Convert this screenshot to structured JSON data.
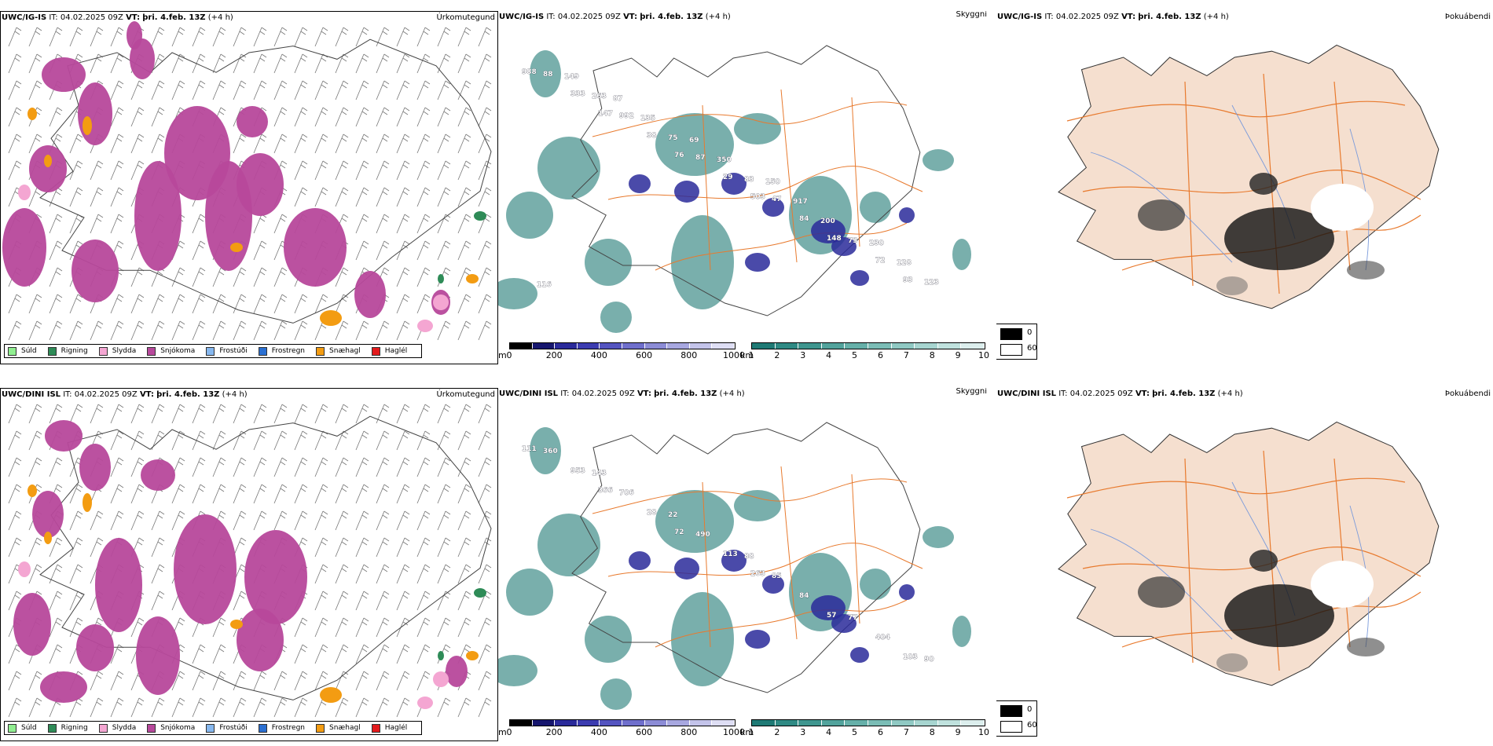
{
  "row1": {
    "precip": {
      "model": "UWC/IG-IS",
      "it_label": "IT:",
      "it_value": "04.02.2025 09Z",
      "vt_label": "VT:",
      "vt_value": "þri. 4.feb. 13Z",
      "lead": "(+4 h)",
      "title": "Úrkomutegund"
    },
    "ceiling": {
      "model": "UWC/IG-IS",
      "it_label": "IT:",
      "it_value": "04.02.2025 09Z",
      "vt_label": "VT:",
      "vt_value": "þri. 4.feb. 13Z",
      "lead": "(+4 h)",
      "title": "Skyggni"
    },
    "fog": {
      "model": "UWC/IG-IS",
      "it_label": "IT:",
      "it_value": "04.02.2025 09Z",
      "vt_label": "VT:",
      "vt_value": "þri. 4.feb. 13Z",
      "lead": "(+4 h)",
      "title": "Þokuábendi"
    },
    "labels": [
      "988",
      "147",
      "76",
      "503",
      "148",
      "93",
      "333",
      "38",
      "29",
      "84",
      "72",
      "88",
      "992",
      "87",
      "47",
      "73",
      "123",
      "263",
      "75",
      "83",
      "200",
      "128",
      "149",
      "135",
      "350",
      "917",
      "230",
      "116",
      "87",
      "69",
      "150"
    ]
  },
  "row2": {
    "precip": {
      "model": "UWC/DINI ISL",
      "it_label": "IT:",
      "it_value": "04.02.2025 09Z",
      "vt_label": "VT:",
      "vt_value": "þri. 4.feb. 13Z",
      "lead": "(+4 h)",
      "title": "Úrkomutegund"
    },
    "ceiling": {
      "model": "UWC/DINI ISL",
      "it_label": "IT:",
      "it_value": "04.02.2025 09Z",
      "vt_label": "VT:",
      "vt_value": "þri. 4.feb. 13Z",
      "lead": "(+4 h)",
      "title": "Skyggni"
    },
    "fog": {
      "model": "UWC/DINI ISL",
      "it_label": "IT:",
      "it_value": "04.02.2025 09Z",
      "vt_label": "VT:",
      "vt_value": "þri. 4.feb. 13Z",
      "lead": "(+4 h)",
      "title": "Þokuábendi"
    },
    "labels": [
      "111",
      "366",
      "72",
      "263",
      "57",
      "103",
      "953",
      "28",
      "113",
      "84",
      "404",
      "360",
      "706",
      "490",
      "85",
      "77",
      "90",
      "143",
      "22",
      "88"
    ]
  },
  "precip_legend": [
    {
      "label": "Súld",
      "color": "#90ee90"
    },
    {
      "label": "Rigning",
      "color": "#2e8b57"
    },
    {
      "label": "Slydda",
      "color": "#f4a6d2"
    },
    {
      "label": "Snjókoma",
      "color": "#b7489b"
    },
    {
      "label": "Frostúði",
      "color": "#87b8ef"
    },
    {
      "label": "Frostregn",
      "color": "#2a6fd1"
    },
    {
      "label": "Snæhagl",
      "color": "#f39c12"
    },
    {
      "label": "Haglél",
      "color": "#e31a1c"
    }
  ],
  "ceiling_scale": {
    "unit": "m",
    "ticks": [
      "0",
      "200",
      "400",
      "600",
      "800",
      "1000"
    ],
    "colors": [
      "#000000",
      "#16166e",
      "#2a2a9a",
      "#3c3cb0",
      "#5454c0",
      "#6f6fcc",
      "#8c8cd6",
      "#a8a8e0",
      "#c4c4ea",
      "#dedef4"
    ]
  },
  "visibility_scale": {
    "unit": "km",
    "ticks": [
      "1",
      "2",
      "3",
      "4",
      "5",
      "6",
      "7",
      "8",
      "9",
      "10"
    ],
    "colors": [
      "#1f7a75",
      "#2f8a84",
      "#3f968f",
      "#52a39c",
      "#66b0a9",
      "#7bbdb6",
      "#90c9c3",
      "#a7d5d0",
      "#c0e2de",
      "#dceeed"
    ]
  },
  "fog_legend": {
    "dark": "0",
    "light": "60"
  },
  "colors": {
    "land": "#f5dfcf",
    "roads": "#e87a2e",
    "rivers": "#7b9bdb",
    "snow": "#b7489b",
    "sleet": "#f4a6d2",
    "hail": "#f39c12",
    "rain": "#2e8b57",
    "low_vis": "#1f7a75"
  }
}
